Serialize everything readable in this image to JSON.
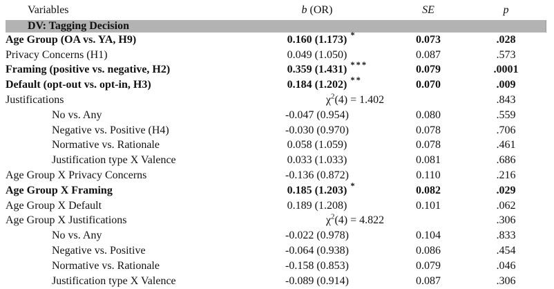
{
  "page": {
    "background_color": "#ffffff",
    "section_band_color": "#b3b3b3",
    "text_color": "#111111"
  },
  "table": {
    "headers": {
      "variables": "Variables",
      "b_label_prefix": "b",
      "b_label_suffix": "(OR)",
      "se": "SE",
      "p": "p"
    },
    "section": {
      "label": "DV: Tagging Decision"
    },
    "rows": [
      {
        "label": "Age Group (OA vs. YA, H9)",
        "indent": 0,
        "bold": true,
        "b": "0.160 (1.173)",
        "stars": "*",
        "se": "0.073",
        "p": ".028"
      },
      {
        "label": "Privacy Concerns (H1)",
        "indent": 0,
        "bold": false,
        "b": "0.049 (1.050)",
        "stars": "",
        "se": "0.087",
        "p": ".573"
      },
      {
        "label": "Framing (positive vs. negative, H2)",
        "indent": 0,
        "bold": true,
        "b": "0.359 (1.431)",
        "stars": "***",
        "se": "0.079",
        "p": ".0001"
      },
      {
        "label": "Default (opt-out vs. opt-in, H3)",
        "indent": 0,
        "bold": true,
        "b": "0.184 (1.202)",
        "stars": "**",
        "se": "0.070",
        "p": ".009"
      },
      {
        "label": "Justifications",
        "indent": 0,
        "bold": false,
        "chi": {
          "symbol": "χ",
          "sup": "2",
          "text": "(4) = 1.402"
        },
        "p": ".843"
      },
      {
        "label": "No vs. Any",
        "indent": 1,
        "bold": false,
        "b": "-0.047 (0.954)",
        "stars": "",
        "se": "0.080",
        "p": ".559"
      },
      {
        "label": "Negative vs. Positive (H4)",
        "indent": 1,
        "bold": false,
        "b": "-0.030 (0.970)",
        "stars": "",
        "se": "0.078",
        "p": ".706"
      },
      {
        "label": "Normative vs. Rationale",
        "indent": 1,
        "bold": false,
        "b": "0.058 (1.059)",
        "stars": "",
        "se": "0.078",
        "p": ".461"
      },
      {
        "label": "Justification type X Valence",
        "indent": 1,
        "bold": false,
        "b": "0.033 (1.033)",
        "stars": "",
        "se": "0.081",
        "p": ".686"
      },
      {
        "label": "Age Group X Privacy Concerns",
        "indent": 0,
        "bold": false,
        "b": "-0.136 (0.872)",
        "stars": "",
        "se": "0.110",
        "p": ".216"
      },
      {
        "label": "Age Group X Framing",
        "indent": 0,
        "bold": true,
        "b": "0.185 (1.203)",
        "stars": "*",
        "se": "0.082",
        "p": ".029"
      },
      {
        "label": "Age Group X Default",
        "indent": 0,
        "bold": false,
        "b": "0.189 (1.208)",
        "stars": "",
        "se": "0.101",
        "p": ".062"
      },
      {
        "label": "Age Group X Justifications",
        "indent": 0,
        "bold": false,
        "chi": {
          "symbol": "χ",
          "sup": "2",
          "text": "(4) = 4.822"
        },
        "p": ".306"
      },
      {
        "label": "No vs. Any",
        "indent": 1,
        "bold": false,
        "b": "-0.022 (0.978)",
        "stars": "",
        "se": "0.104",
        "p": ".833"
      },
      {
        "label": "Negative vs. Positive",
        "indent": 1,
        "bold": false,
        "b": "-0.064 (0.938)",
        "stars": "",
        "se": "0.086",
        "p": ".454"
      },
      {
        "label": "Normative vs. Rationale",
        "indent": 1,
        "bold": false,
        "b": "-0.158 (0.853)",
        "stars": "",
        "se": "0.079",
        "p": ".046"
      },
      {
        "label": "Justification type X Valence",
        "indent": 1,
        "bold": false,
        "b": "-0.089 (0.914)",
        "stars": "",
        "se": "0.087",
        "p": ".306"
      }
    ]
  }
}
